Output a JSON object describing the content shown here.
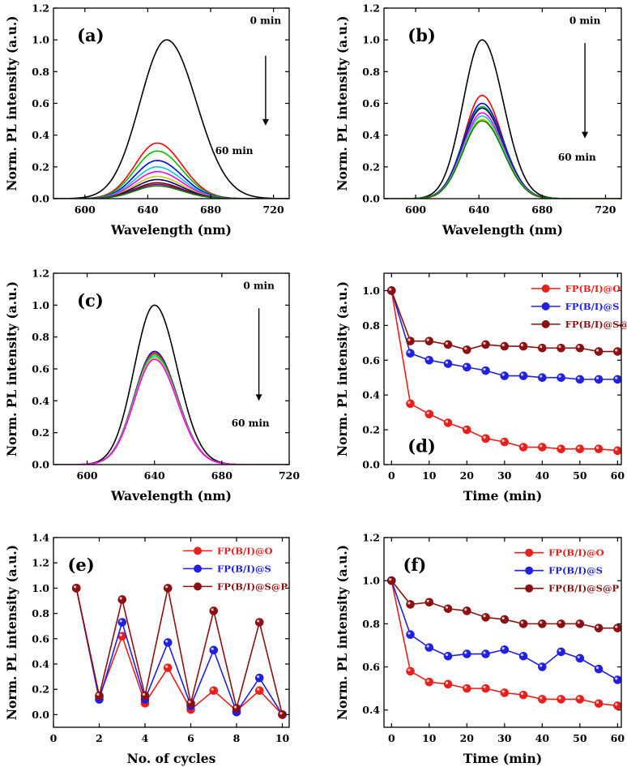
{
  "chart_data": [
    {
      "type": "line",
      "panel_label": "(a)",
      "xlabel": "Wavelength (nm)",
      "ylabel": "Norm. PL intensity (a.u.)",
      "xlim": [
        580,
        730
      ],
      "ylim": [
        0,
        1.2
      ],
      "xticks": [
        600,
        640,
        680,
        720
      ],
      "yticks": [
        0.0,
        0.2,
        0.4,
        0.6,
        0.8,
        1.0,
        1.2
      ],
      "annotation_start": "0 min",
      "annotation_end": "60 min",
      "arrow": {
        "x": 715,
        "y_from": 0.9,
        "y_to": 0.46
      },
      "series": [
        {
          "name": "0 min",
          "color": "#000000",
          "peak_nm": 652,
          "peak": 1.0,
          "width": 24
        },
        {
          "color": "#ff0000",
          "peak_nm": 646,
          "peak": 0.35,
          "width": 20
        },
        {
          "color": "#00c000",
          "peak_nm": 646,
          "peak": 0.3,
          "width": 20
        },
        {
          "color": "#0000ff",
          "peak_nm": 646,
          "peak": 0.24,
          "width": 20
        },
        {
          "color": "#00cccc",
          "peak_nm": 646,
          "peak": 0.2,
          "width": 20
        },
        {
          "color": "#ff00ff",
          "peak_nm": 646,
          "peak": 0.17,
          "width": 20
        },
        {
          "color": "#cccc00",
          "peak_nm": 646,
          "peak": 0.14,
          "width": 20
        },
        {
          "color": "#000080",
          "peak_nm": 646,
          "peak": 0.12,
          "width": 20
        },
        {
          "color": "#800000",
          "peak_nm": 646,
          "peak": 0.1,
          "width": 20
        },
        {
          "color": "#800080",
          "peak_nm": 646,
          "peak": 0.09,
          "width": 20
        },
        {
          "color": "#008000",
          "peak_nm": 646,
          "peak": 0.08,
          "width": 20
        }
      ]
    },
    {
      "type": "line",
      "panel_label": "(b)",
      "xlabel": "Wavelength (nm)",
      "ylabel": "Norm. PL intensity (a.u.)",
      "xlim": [
        580,
        730
      ],
      "ylim": [
        0,
        1.2
      ],
      "xticks": [
        600,
        640,
        680,
        720
      ],
      "yticks": [
        0.0,
        0.2,
        0.4,
        0.6,
        0.8,
        1.0,
        1.2
      ],
      "annotation_start": "0 min",
      "annotation_end": "60 min",
      "arrow": {
        "x": 707,
        "y_from": 0.98,
        "y_to": 0.38
      },
      "series": [
        {
          "name": "0 min",
          "color": "#000000",
          "peak_nm": 642,
          "peak": 1.0,
          "width": 17
        },
        {
          "color": "#ff0000",
          "peak_nm": 642,
          "peak": 0.65,
          "width": 16
        },
        {
          "color": "#0000ff",
          "peak_nm": 642,
          "peak": 0.6,
          "width": 17
        },
        {
          "color": "#00c000",
          "peak_nm": 642,
          "peak": 0.58,
          "width": 17
        },
        {
          "color": "#000080",
          "peak_nm": 642,
          "peak": 0.57,
          "width": 17
        },
        {
          "color": "#ff00ff",
          "peak_nm": 642,
          "peak": 0.54,
          "width": 17
        },
        {
          "color": "#00cccc",
          "peak_nm": 642,
          "peak": 0.52,
          "width": 17
        },
        {
          "color": "#cccc00",
          "peak_nm": 642,
          "peak": 0.5,
          "width": 17
        },
        {
          "color": "#008000",
          "peak_nm": 642,
          "peak": 0.49,
          "width": 17
        }
      ]
    },
    {
      "type": "line",
      "panel_label": "(c)",
      "xlabel": "Wavelength (nm)",
      "ylabel": "Norm. PL intensity (a.u.)",
      "xlim": [
        580,
        720
      ],
      "ylim": [
        0,
        1.2
      ],
      "xticks": [
        600,
        640,
        680,
        720
      ],
      "yticks": [
        0.0,
        0.2,
        0.4,
        0.6,
        0.8,
        1.0,
        1.2
      ],
      "annotation_start": "0 min",
      "annotation_end": "60 min",
      "arrow": {
        "x": 702,
        "y_from": 0.98,
        "y_to": 0.4
      },
      "series": [
        {
          "name": "0 min",
          "color": "#000000",
          "peak_nm": 640,
          "peak": 1.0,
          "width": 17
        },
        {
          "color": "#0000ff",
          "peak_nm": 640,
          "peak": 0.71,
          "width": 17
        },
        {
          "color": "#ff0000",
          "peak_nm": 640,
          "peak": 0.7,
          "width": 17
        },
        {
          "color": "#00c000",
          "peak_nm": 640,
          "peak": 0.69,
          "width": 17
        },
        {
          "color": "#00cccc",
          "peak_nm": 640,
          "peak": 0.68,
          "width": 17
        },
        {
          "color": "#cccc00",
          "peak_nm": 640,
          "peak": 0.67,
          "width": 17
        },
        {
          "color": "#ff00ff",
          "peak_nm": 640,
          "peak": 0.66,
          "width": 17
        }
      ]
    },
    {
      "type": "line",
      "panel_label": "(d)",
      "xlabel": "Time (min)",
      "ylabel": "Norm. PL intensity (a.u.)",
      "xlim": [
        -2,
        61
      ],
      "ylim": [
        0,
        1.1
      ],
      "xticks": [
        0,
        10,
        20,
        30,
        40,
        50,
        60
      ],
      "yticks": [
        0.0,
        0.2,
        0.4,
        0.6,
        0.8,
        1.0
      ],
      "legend": "top-right",
      "x": [
        0,
        5,
        10,
        15,
        20,
        25,
        30,
        35,
        40,
        45,
        50,
        55,
        60
      ],
      "series": [
        {
          "name": "FP(B/I)@O",
          "color": "#e8201c",
          "values": [
            1.0,
            0.35,
            0.29,
            0.24,
            0.2,
            0.15,
            0.13,
            0.1,
            0.1,
            0.09,
            0.09,
            0.09,
            0.08
          ]
        },
        {
          "name": "FP(B/I)@S",
          "color": "#2020e0",
          "values": [
            1.0,
            0.64,
            0.6,
            0.58,
            0.56,
            0.54,
            0.51,
            0.51,
            0.5,
            0.5,
            0.49,
            0.49,
            0.49
          ]
        },
        {
          "name": "FP(B/I)@S@P",
          "color": "#8b1010",
          "values": [
            1.0,
            0.71,
            0.71,
            0.69,
            0.66,
            0.69,
            0.68,
            0.68,
            0.67,
            0.67,
            0.67,
            0.65,
            0.65
          ]
        }
      ]
    },
    {
      "type": "line",
      "panel_label": "(e)",
      "xlabel": "No. of cycles",
      "ylabel": "Norm. PL intensity (a.u.)",
      "xlim": [
        0,
        10.3
      ],
      "ylim": [
        -0.1,
        1.4
      ],
      "xticks": [
        0,
        2,
        4,
        6,
        8,
        10
      ],
      "yticks": [
        0.0,
        0.2,
        0.4,
        0.6,
        0.8,
        1.0,
        1.2,
        1.4
      ],
      "legend": "top-right",
      "x": [
        1,
        2,
        3,
        4,
        5,
        6,
        7,
        8,
        9,
        10
      ],
      "series": [
        {
          "name": "FP(B/I)@O",
          "color": "#e8201c",
          "values": [
            1.0,
            0.14,
            0.62,
            0.09,
            0.37,
            0.04,
            0.19,
            0.03,
            0.19,
            0.0
          ]
        },
        {
          "name": "FP(B/I)@S",
          "color": "#2020e0",
          "values": [
            1.0,
            0.12,
            0.73,
            0.12,
            0.57,
            0.07,
            0.51,
            0.02,
            0.29,
            0.0
          ]
        },
        {
          "name": "FP(B/I)@S@P",
          "color": "#8b1010",
          "values": [
            1.0,
            0.15,
            0.91,
            0.15,
            1.0,
            0.09,
            0.82,
            0.05,
            0.73,
            0.0
          ]
        }
      ]
    },
    {
      "type": "line",
      "panel_label": "(f)",
      "xlabel": "Time (min)",
      "ylabel": "Norm. PL intensity (a.u.)",
      "xlim": [
        -2,
        61
      ],
      "ylim": [
        0.32,
        1.2
      ],
      "xticks": [
        0,
        10,
        20,
        30,
        40,
        50,
        60
      ],
      "yticks": [
        0.4,
        0.6,
        0.8,
        1.0,
        1.2
      ],
      "legend": "top-right",
      "x": [
        0,
        5,
        10,
        15,
        20,
        25,
        30,
        35,
        40,
        45,
        50,
        55,
        60
      ],
      "series": [
        {
          "name": "FP(B/I)@O",
          "color": "#e8201c",
          "values": [
            1.0,
            0.58,
            0.53,
            0.52,
            0.5,
            0.5,
            0.48,
            0.47,
            0.45,
            0.45,
            0.45,
            0.43,
            0.42
          ]
        },
        {
          "name": "FP(B/I)@S",
          "color": "#2020e0",
          "values": [
            1.0,
            0.75,
            0.69,
            0.65,
            0.66,
            0.66,
            0.68,
            0.65,
            0.6,
            0.67,
            0.64,
            0.59,
            0.54
          ]
        },
        {
          "name": "FP(B/I)@S@P",
          "color": "#8b1010",
          "values": [
            1.0,
            0.89,
            0.9,
            0.87,
            0.86,
            0.83,
            0.82,
            0.8,
            0.8,
            0.8,
            0.8,
            0.78,
            0.78
          ]
        }
      ]
    }
  ]
}
